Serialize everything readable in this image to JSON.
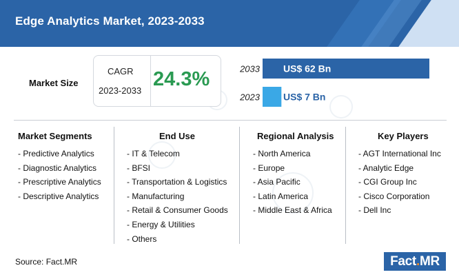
{
  "header": {
    "title": "Edge Analytics Market, 2023-2033"
  },
  "market_size": {
    "label": "Market Size",
    "cagr_label": "CAGR",
    "cagr_years": "2023-2033",
    "cagr_value": "24.3%"
  },
  "chart_data": {
    "type": "bar",
    "orientation": "horizontal",
    "categories": [
      "2033",
      "2023"
    ],
    "values": [
      62,
      7
    ],
    "value_labels": [
      "US$ 62 Bn",
      "US$ 7 Bn"
    ],
    "unit": "US$ Bn",
    "colors": [
      "#2b64a7",
      "#3aa8e6"
    ],
    "grid": false
  },
  "segments": {
    "market_segments": {
      "title": "Market Segments",
      "items": [
        "Predictive Analytics",
        "Diagnostic Analytics",
        "Prescriptive Analytics",
        "Descriptive Analytics"
      ]
    },
    "end_use": {
      "title": "End Use",
      "items": [
        "IT & Telecom",
        "BFSI",
        "Transportation & Logistics",
        "Manufacturing",
        "Retail & Consumer Goods",
        "Energy & Utilities",
        "Others"
      ]
    },
    "regional": {
      "title": "Regional Analysis",
      "items": [
        "North America",
        "Europe",
        "Asia Pacific",
        "Latin America",
        "Middle East & Africa"
      ]
    },
    "players": {
      "title": "Key Players",
      "items": [
        "AGT International Inc",
        "Analytic Edge",
        "CGI Group Inc",
        "Cisco Corporation",
        "Dell Inc"
      ]
    }
  },
  "footer": {
    "source": "Source: Fact.MR",
    "logo_left": "Fact",
    "logo_dot": ".",
    "logo_right": "MR"
  }
}
